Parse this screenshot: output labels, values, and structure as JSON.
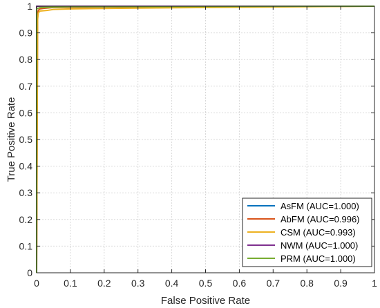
{
  "chart_data": {
    "type": "line",
    "title": "",
    "xlabel": "False Positive Rate",
    "ylabel": "True Positive Rate",
    "xlim": [
      0,
      1
    ],
    "ylim": [
      0,
      1
    ],
    "xticks": [
      "0",
      "0.1",
      "0.2",
      "0.3",
      "0.4",
      "0.5",
      "0.6",
      "0.7",
      "0.8",
      "0.9",
      "1"
    ],
    "yticks": [
      "0",
      "0.1",
      "0.2",
      "0.3",
      "0.4",
      "0.5",
      "0.6",
      "0.7",
      "0.8",
      "0.9",
      "1"
    ],
    "grid": true,
    "legend_position": "bottom-right",
    "series": [
      {
        "name": "AsFM (AUC=1.000)",
        "color": "#0072BD",
        "x": [
          0,
          0,
          0.01,
          1
        ],
        "y": [
          0,
          1,
          1,
          1
        ]
      },
      {
        "name": "AbFM (AUC=0.996)",
        "color": "#D95319",
        "x": [
          0,
          0.003,
          0.005,
          0.01,
          0.02,
          0.05,
          0.2,
          1
        ],
        "y": [
          0,
          0.97,
          0.985,
          0.99,
          0.992,
          0.995,
          0.997,
          1
        ]
      },
      {
        "name": "CSM (AUC=0.993)",
        "color": "#EDB120",
        "x": [
          0,
          0.003,
          0.005,
          0.01,
          0.03,
          0.05,
          0.1,
          0.3,
          0.6,
          1
        ],
        "y": [
          0,
          0.95,
          0.975,
          0.982,
          0.984,
          0.988,
          0.99,
          0.993,
          0.996,
          1
        ]
      },
      {
        "name": "NWM (AUC=1.000)",
        "color": "#7E2F8E",
        "x": [
          0,
          0,
          0.01,
          1
        ],
        "y": [
          0,
          1,
          1,
          1
        ]
      },
      {
        "name": "PRM (AUC=1.000)",
        "color": "#77AC30",
        "x": [
          0,
          0,
          0.01,
          0.1,
          1
        ],
        "y": [
          0,
          0.99,
          0.995,
          0.998,
          1
        ]
      }
    ]
  }
}
